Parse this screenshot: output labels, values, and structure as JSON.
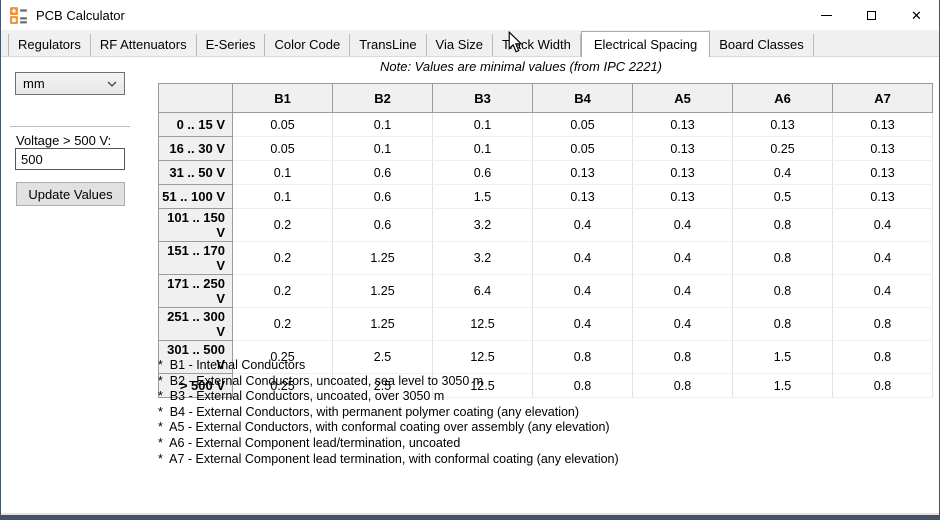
{
  "window": {
    "title": "PCB Calculator"
  },
  "tabs": [
    {
      "label": "Regulators",
      "active": false
    },
    {
      "label": "RF Attenuators",
      "active": false
    },
    {
      "label": "E-Series",
      "active": false
    },
    {
      "label": "Color Code",
      "active": false
    },
    {
      "label": "TransLine",
      "active": false
    },
    {
      "label": "Via Size",
      "active": false
    },
    {
      "label": "Track Width",
      "active": false
    },
    {
      "label": "Electrical Spacing",
      "active": true
    },
    {
      "label": "Board Classes",
      "active": false
    }
  ],
  "note": "Note: Values are minimal values (from IPC 2221)",
  "sidebar": {
    "unit_value": "mm",
    "voltage_label": "Voltage > 500 V:",
    "voltage_value": "500",
    "update_button_label": "Update Values"
  },
  "table": {
    "columns": [
      "B1",
      "B2",
      "B3",
      "B4",
      "A5",
      "A6",
      "A7"
    ],
    "rows": [
      {
        "label": "0 .. 15 V",
        "values": [
          "0.05",
          "0.1",
          "0.1",
          "0.05",
          "0.13",
          "0.13",
          "0.13"
        ]
      },
      {
        "label": "16 .. 30 V",
        "values": [
          "0.05",
          "0.1",
          "0.1",
          "0.05",
          "0.13",
          "0.25",
          "0.13"
        ]
      },
      {
        "label": "31 .. 50 V",
        "values": [
          "0.1",
          "0.6",
          "0.6",
          "0.13",
          "0.13",
          "0.4",
          "0.13"
        ]
      },
      {
        "label": "51 .. 100 V",
        "values": [
          "0.1",
          "0.6",
          "1.5",
          "0.13",
          "0.13",
          "0.5",
          "0.13"
        ]
      },
      {
        "label": "101 .. 150 V",
        "values": [
          "0.2",
          "0.6",
          "3.2",
          "0.4",
          "0.4",
          "0.8",
          "0.4"
        ]
      },
      {
        "label": "151 .. 170 V",
        "values": [
          "0.2",
          "1.25",
          "3.2",
          "0.4",
          "0.4",
          "0.8",
          "0.4"
        ]
      },
      {
        "label": "171 .. 250 V",
        "values": [
          "0.2",
          "1.25",
          "6.4",
          "0.4",
          "0.4",
          "0.8",
          "0.4"
        ]
      },
      {
        "label": "251 .. 300 V",
        "values": [
          "0.2",
          "1.25",
          "12.5",
          "0.4",
          "0.4",
          "0.8",
          "0.8"
        ]
      },
      {
        "label": "301 .. 500 V",
        "values": [
          "0.25",
          "2.5",
          "12.5",
          "0.8",
          "0.8",
          "1.5",
          "0.8"
        ]
      },
      {
        "label": "> 500 V",
        "values": [
          "0.25",
          "2.5",
          "12.5",
          "0.8",
          "0.8",
          "1.5",
          "0.8"
        ]
      }
    ]
  },
  "footnotes": [
    "*  B1 - Internal Conductors",
    "*  B2 - External Conductors, uncoated, sea level to 3050 m",
    "*  B3 - External Conductors, uncoated, over 3050 m",
    "*  B4 - External Conductors, with permanent polymer coating (any elevation)",
    "*  A5 - External Conductors, with conformal coating over assembly (any elevation)",
    "*  A6 - External Component lead/termination, uncoated",
    "*  A7 - External Component lead termination, with conformal coating (any elevation)"
  ],
  "colors": {
    "accent_orange": "#f0912d",
    "window_frame": "#455266",
    "header_bg": "#f0f0f0"
  }
}
